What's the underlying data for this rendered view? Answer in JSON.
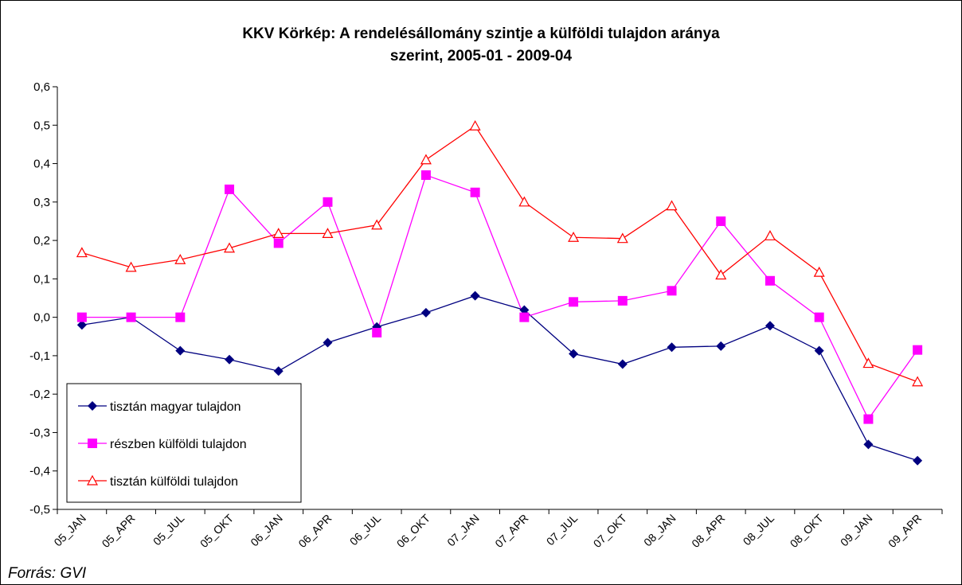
{
  "chart_data": {
    "type": "line",
    "title": [
      "KKV Körkép: A rendelésállomány szintje a külföldi tulajdon aránya",
      "szerint, 2005-01 - 2009-04"
    ],
    "source": "Forrás: GVI",
    "categories": [
      "05_JAN",
      "05_APR",
      "05_JUL",
      "05_OKT",
      "06_JAN",
      "06_APR",
      "06_JUL",
      "06_OKT",
      "07_JAN",
      "07_APR",
      "07_JUL",
      "07_OKT",
      "08_JAN",
      "08_APR",
      "08_JUL",
      "08_OKT",
      "09_JAN",
      "09_APR"
    ],
    "series": [
      {
        "name": "tisztán magyar tulajdon",
        "color": "#000080",
        "marker": "diamond",
        "values": [
          -0.02,
          0.0,
          -0.087,
          -0.11,
          -0.14,
          -0.066,
          -0.025,
          0.012,
          0.056,
          0.019,
          -0.095,
          -0.122,
          -0.078,
          -0.075,
          -0.022,
          -0.087,
          -0.331,
          -0.373
        ]
      },
      {
        "name": "részben külföldi tulajdon",
        "color": "#ff00ff",
        "marker": "square",
        "values": [
          0.0,
          0.0,
          0.0,
          0.333,
          0.193,
          0.3,
          -0.04,
          0.37,
          0.325,
          0.0,
          0.04,
          0.043,
          0.069,
          0.25,
          0.095,
          0.0,
          -0.265,
          -0.085
        ]
      },
      {
        "name": "tisztán külföldi tulajdon",
        "color": "#ff0000",
        "marker": "triangle",
        "values": [
          0.168,
          0.13,
          0.15,
          0.18,
          0.218,
          0.218,
          0.24,
          0.41,
          0.498,
          0.3,
          0.208,
          0.205,
          0.29,
          0.11,
          0.212,
          0.117,
          -0.12,
          -0.168
        ]
      }
    ],
    "ylim": [
      -0.5,
      0.6
    ],
    "yticks": [
      {
        "value": -0.5,
        "label": "-0,5"
      },
      {
        "value": -0.4,
        "label": "-0,4"
      },
      {
        "value": -0.3,
        "label": "-0,3"
      },
      {
        "value": -0.2,
        "label": "-0,2"
      },
      {
        "value": -0.1,
        "label": "-0,1"
      },
      {
        "value": 0,
        "label": "0,0"
      },
      {
        "value": 0.1,
        "label": "0,1"
      },
      {
        "value": 0.2,
        "label": "0,2"
      },
      {
        "value": 0.3,
        "label": "0,3"
      },
      {
        "value": 0.4,
        "label": "0,4"
      },
      {
        "value": 0.5,
        "label": "0,5"
      },
      {
        "value": 0.6,
        "label": "0,6"
      }
    ],
    "grid": false,
    "legend": "lower left"
  }
}
